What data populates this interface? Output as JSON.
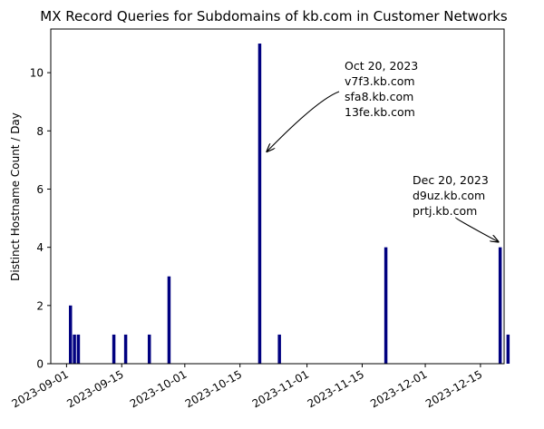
{
  "chart_data": {
    "type": "bar",
    "title": "MX Record Queries for Subdomains of kb.com in Customer Networks",
    "xlabel": "",
    "ylabel": "Distinct Hostname Count / Day",
    "xlim": [
      "2023-08-28",
      "2023-12-21"
    ],
    "ylim": [
      0,
      11.5
    ],
    "y_ticks": [
      0,
      2,
      4,
      6,
      8,
      10
    ],
    "x_ticks": [
      "2023-09-01",
      "2023-09-15",
      "2023-10-01",
      "2023-10-15",
      "2023-11-01",
      "2023-11-15",
      "2023-12-01",
      "2023-12-15"
    ],
    "bar_color": "#000080",
    "grid": false,
    "points": [
      {
        "date": "2023-09-02",
        "value": 2
      },
      {
        "date": "2023-09-03",
        "value": 1
      },
      {
        "date": "2023-09-04",
        "value": 1
      },
      {
        "date": "2023-09-13",
        "value": 1
      },
      {
        "date": "2023-09-16",
        "value": 1
      },
      {
        "date": "2023-09-22",
        "value": 1
      },
      {
        "date": "2023-09-27",
        "value": 3
      },
      {
        "date": "2023-10-20",
        "value": 11
      },
      {
        "date": "2023-10-25",
        "value": 1
      },
      {
        "date": "2023-11-21",
        "value": 4
      },
      {
        "date": "2023-12-20",
        "value": 4
      },
      {
        "date": "2023-12-22",
        "value": 1
      }
    ],
    "annotations": [
      {
        "target_date": "2023-10-20",
        "lines": [
          "Oct 20, 2023",
          "v7f3.kb.com",
          "sfa8.kb.com",
          "13fe.kb.com"
        ]
      },
      {
        "target_date": "2023-12-20",
        "lines": [
          "Dec 20, 2023",
          "d9uz.kb.com",
          "prtj.kb.com"
        ]
      }
    ]
  }
}
